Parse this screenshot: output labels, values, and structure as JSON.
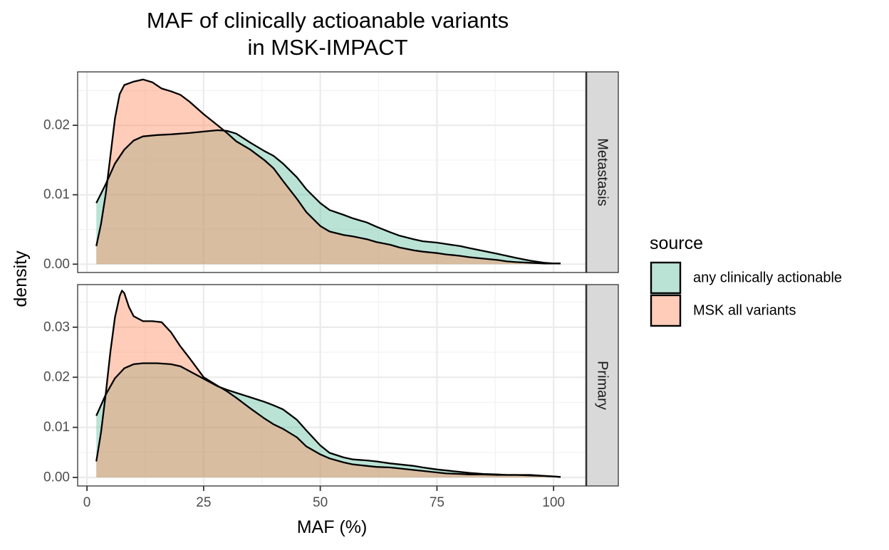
{
  "chart_data": {
    "type": "area",
    "title": "MAF of clinically actioanable variants",
    "subtitle": "in MSK-IMPACT",
    "xlabel": "MAF (%)",
    "ylabel": "density",
    "xlim": [
      -2,
      107
    ],
    "x_ticks": [
      0,
      25,
      50,
      75,
      100
    ],
    "x_tick_labels": [
      "0",
      "25",
      "50",
      "75",
      "100"
    ],
    "grid": true,
    "legend": {
      "title": "source",
      "position": "right",
      "entries": [
        "any clinically actionable",
        "MSK all variants"
      ]
    },
    "colors": {
      "any clinically actionable": "#66c2a5",
      "MSK all variants": "#fc8d62",
      "strip_bg": "#d9d9d9",
      "grid_major": "#ebebeb",
      "panel_border": "#333333"
    },
    "fill_alpha": 0.45,
    "facets": [
      {
        "label": "Metastasis",
        "ylim": [
          -0.0012,
          0.0277
        ],
        "y_ticks": [
          0.0,
          0.01,
          0.02
        ],
        "y_tick_labels": [
          "0.00",
          "0.01",
          "0.02"
        ],
        "series": [
          {
            "name": "any clinically actionable",
            "x": [
              2,
              4,
              6,
              8,
              10,
              12,
              15,
              18,
              20,
              22,
              25,
              28,
              30,
              32,
              35,
              38,
              40,
              42,
              45,
              47,
              50,
              52,
              55,
              57,
              60,
              62,
              65,
              67,
              70,
              72,
              75,
              77,
              80,
              82,
              85,
              88,
              90,
              92,
              95,
              98,
              100,
              101.5
            ],
            "y": [
              0.0088,
              0.0115,
              0.0145,
              0.0165,
              0.0178,
              0.0184,
              0.0186,
              0.0187,
              0.0188,
              0.0189,
              0.0191,
              0.0193,
              0.0192,
              0.0188,
              0.0175,
              0.0163,
              0.0156,
              0.0145,
              0.0125,
              0.0108,
              0.0088,
              0.0078,
              0.0071,
              0.0066,
              0.006,
              0.0054,
              0.0046,
              0.0041,
              0.0036,
              0.0033,
              0.0031,
              0.0029,
              0.0026,
              0.0023,
              0.0019,
              0.0015,
              0.0012,
              0.0009,
              0.0005,
              0.0002,
              0.0001,
              0.0001
            ]
          },
          {
            "name": "MSK all variants",
            "x": [
              2,
              3,
              4,
              5,
              6,
              7,
              8,
              10,
              12,
              14,
              16,
              18,
              20,
              22,
              25,
              28,
              30,
              32,
              35,
              38,
              40,
              42,
              45,
              47,
              50,
              52,
              55,
              57,
              60,
              62,
              65,
              67,
              70,
              72,
              75,
              77,
              80,
              82,
              85,
              88,
              90,
              92,
              95,
              98,
              100,
              101.5
            ],
            "y": [
              0.0026,
              0.0058,
              0.01,
              0.0155,
              0.021,
              0.0245,
              0.0258,
              0.0263,
              0.0266,
              0.0262,
              0.0253,
              0.0249,
              0.0244,
              0.0234,
              0.0216,
              0.02,
              0.0189,
              0.0177,
              0.0165,
              0.015,
              0.0138,
              0.012,
              0.0094,
              0.0075,
              0.0055,
              0.0047,
              0.0042,
              0.004,
              0.0036,
              0.0032,
              0.0028,
              0.0024,
              0.002,
              0.0018,
              0.0016,
              0.0014,
              0.0012,
              0.001,
              0.0008,
              0.0006,
              0.0004,
              0.0003,
              0.0002,
              0.0001,
              0.0001,
              0.0001
            ]
          }
        ]
      },
      {
        "label": "Primary",
        "ylim": [
          -0.0017,
          0.0385
        ],
        "y_ticks": [
          0.0,
          0.01,
          0.02,
          0.03
        ],
        "y_tick_labels": [
          "0.00",
          "0.01",
          "0.02",
          "0.03"
        ],
        "series": [
          {
            "name": "any clinically actionable",
            "x": [
              2,
              4,
              6,
              8,
              10,
              12,
              15,
              18,
              20,
              22,
              25,
              28,
              30,
              32,
              35,
              38,
              40,
              42,
              45,
              47,
              50,
              52,
              55,
              57,
              60,
              62,
              65,
              67,
              70,
              72,
              75,
              77,
              80,
              82,
              85,
              88,
              90,
              92,
              95,
              98,
              100,
              101.5
            ],
            "y": [
              0.0123,
              0.0165,
              0.0198,
              0.0218,
              0.0226,
              0.0228,
              0.0228,
              0.0226,
              0.0222,
              0.0212,
              0.0197,
              0.0182,
              0.0175,
              0.0169,
              0.016,
              0.0151,
              0.0144,
              0.0136,
              0.0115,
              0.0094,
              0.0064,
              0.0049,
              0.004,
              0.0036,
              0.0034,
              0.0032,
              0.0028,
              0.0026,
              0.0023,
              0.002,
              0.0016,
              0.0014,
              0.0011,
              0.0009,
              0.0007,
              0.0006,
              0.0005,
              0.0005,
              0.0004,
              0.0003,
              0.0002,
              0.0001
            ]
          },
          {
            "name": "MSK all variants",
            "x": [
              2,
              3,
              4,
              5,
              6,
              7,
              7.5,
              8,
              9,
              10,
              12,
              14,
              16,
              18,
              20,
              22,
              25,
              28,
              30,
              32,
              35,
              38,
              40,
              42,
              45,
              47,
              50,
              52,
              55,
              57,
              60,
              62,
              65,
              67,
              70,
              72,
              75,
              77,
              80,
              82,
              85,
              88,
              90,
              92,
              95,
              98,
              100,
              101.5
            ],
            "y": [
              0.0032,
              0.009,
              0.0165,
              0.025,
              0.032,
              0.0362,
              0.0373,
              0.0368,
              0.034,
              0.0322,
              0.0312,
              0.0312,
              0.031,
              0.029,
              0.0262,
              0.0238,
              0.02,
              0.0183,
              0.0172,
              0.0159,
              0.0138,
              0.0118,
              0.0106,
              0.0097,
              0.008,
              0.0062,
              0.0046,
              0.0038,
              0.003,
              0.0026,
              0.0023,
              0.0021,
              0.002,
              0.0018,
              0.0015,
              0.0013,
              0.001,
              0.0008,
              0.0007,
              0.0006,
              0.0006,
              0.0005,
              0.0005,
              0.0005,
              0.0005,
              0.0003,
              0.0002,
              0.0001
            ]
          }
        ]
      }
    ]
  }
}
